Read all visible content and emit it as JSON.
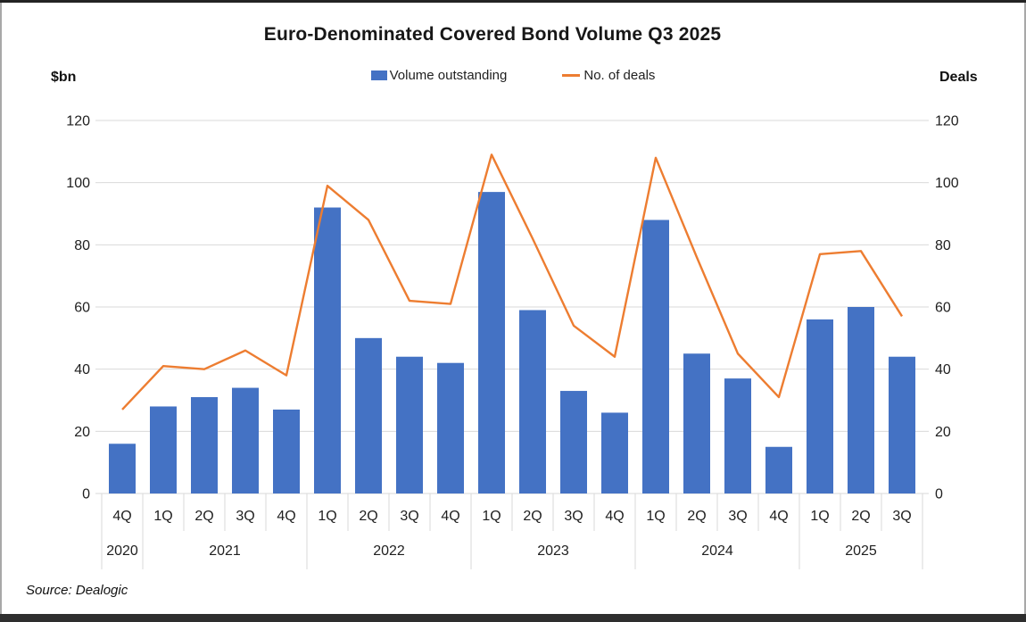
{
  "chart_data": {
    "type": "combo-bar-line",
    "title": "Euro-Denominated Covered Bond Volume Q3 2025",
    "left_axis": {
      "label": "$bn",
      "min": 0,
      "max": 120,
      "ticks": [
        0,
        20,
        40,
        60,
        80,
        100,
        120
      ]
    },
    "right_axis": {
      "label": "Deals",
      "min": 0,
      "max": 120,
      "ticks": [
        0,
        20,
        40,
        60,
        80,
        100,
        120
      ]
    },
    "legend_position": "top-center",
    "grid": "horizontal",
    "gridline_color": "#d9d9d9",
    "quarters": [
      "4Q",
      "1Q",
      "2Q",
      "3Q",
      "4Q",
      "1Q",
      "2Q",
      "3Q",
      "4Q",
      "1Q",
      "2Q",
      "3Q",
      "4Q",
      "1Q",
      "2Q",
      "3Q",
      "4Q",
      "1Q",
      "2Q",
      "3Q"
    ],
    "year_groups": [
      {
        "label": "2020",
        "quarters": 1
      },
      {
        "label": "2021",
        "quarters": 4
      },
      {
        "label": "2022",
        "quarters": 4
      },
      {
        "label": "2023",
        "quarters": 4
      },
      {
        "label": "2024",
        "quarters": 4
      },
      {
        "label": "2025",
        "quarters": 3
      }
    ],
    "series": [
      {
        "name": "Volume outstanding",
        "type": "bar",
        "axis": "left",
        "color": "#4472C4",
        "values": [
          16,
          28,
          31,
          34,
          27,
          92,
          50,
          44,
          42,
          97,
          59,
          33,
          26,
          88,
          45,
          37,
          15,
          56,
          60,
          44
        ]
      },
      {
        "name": "No. of deals",
        "type": "line",
        "axis": "right",
        "color": "#ED7D31",
        "values": [
          27,
          41,
          40,
          46,
          38,
          99,
          88,
          62,
          61,
          109,
          82,
          54,
          44,
          108,
          76,
          45,
          31,
          77,
          78,
          57
        ]
      }
    ]
  },
  "source": {
    "text": "Source: Dealogic"
  }
}
